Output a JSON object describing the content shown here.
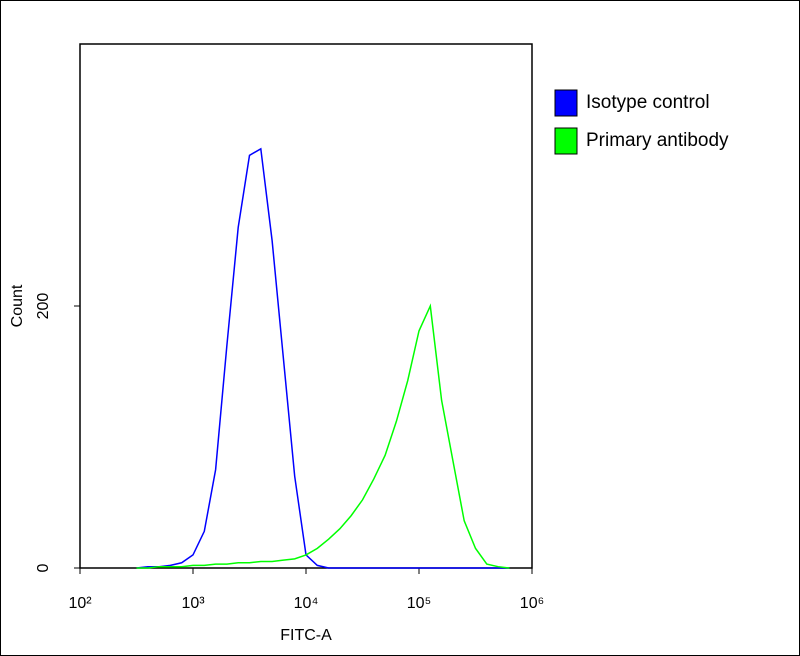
{
  "chart_data": {
    "type": "line",
    "x_label": "FITC-A",
    "y_label": "Count",
    "xscale": "log",
    "xlim": [
      100,
      1000000
    ],
    "ylim": [
      0,
      400
    ],
    "xticks": [
      {
        "value": 100,
        "label": "10²"
      },
      {
        "value": 1000,
        "label": "10³"
      },
      {
        "value": 10000,
        "label": "10⁴"
      },
      {
        "value": 100000,
        "label": "10⁵"
      },
      {
        "value": 1000000,
        "label": "10⁶"
      }
    ],
    "yticks": [
      0,
      200
    ],
    "legend": "outside-right",
    "x": [
      316,
      398,
      501,
      631,
      794,
      1000,
      1259,
      1585,
      1995,
      2512,
      3162,
      3981,
      5012,
      6310,
      7943,
      10000,
      12589,
      15849,
      19953,
      25119,
      31623,
      39811,
      50119,
      63096,
      79433,
      100000,
      125893,
      158489,
      199526,
      251189,
      316228,
      398107,
      501187,
      630957
    ],
    "series": [
      {
        "name": "Isotype control",
        "color": "#0000ff",
        "values": [
          0,
          1,
          1,
          2,
          4,
          10,
          28,
          75,
          170,
          260,
          315,
          320,
          250,
          160,
          70,
          10,
          2,
          0,
          0,
          0,
          0,
          0,
          0,
          0,
          0,
          0,
          0,
          0,
          0,
          0,
          0,
          0,
          0,
          0
        ]
      },
      {
        "name": "Primary antibody",
        "color": "#00ff00",
        "values": [
          0,
          0,
          1,
          1,
          1,
          2,
          2,
          3,
          3,
          4,
          4,
          5,
          5,
          6,
          7,
          10,
          15,
          22,
          30,
          40,
          52,
          68,
          86,
          112,
          143,
          181,
          200,
          128,
          82,
          36,
          15,
          3,
          1,
          0
        ]
      }
    ]
  }
}
